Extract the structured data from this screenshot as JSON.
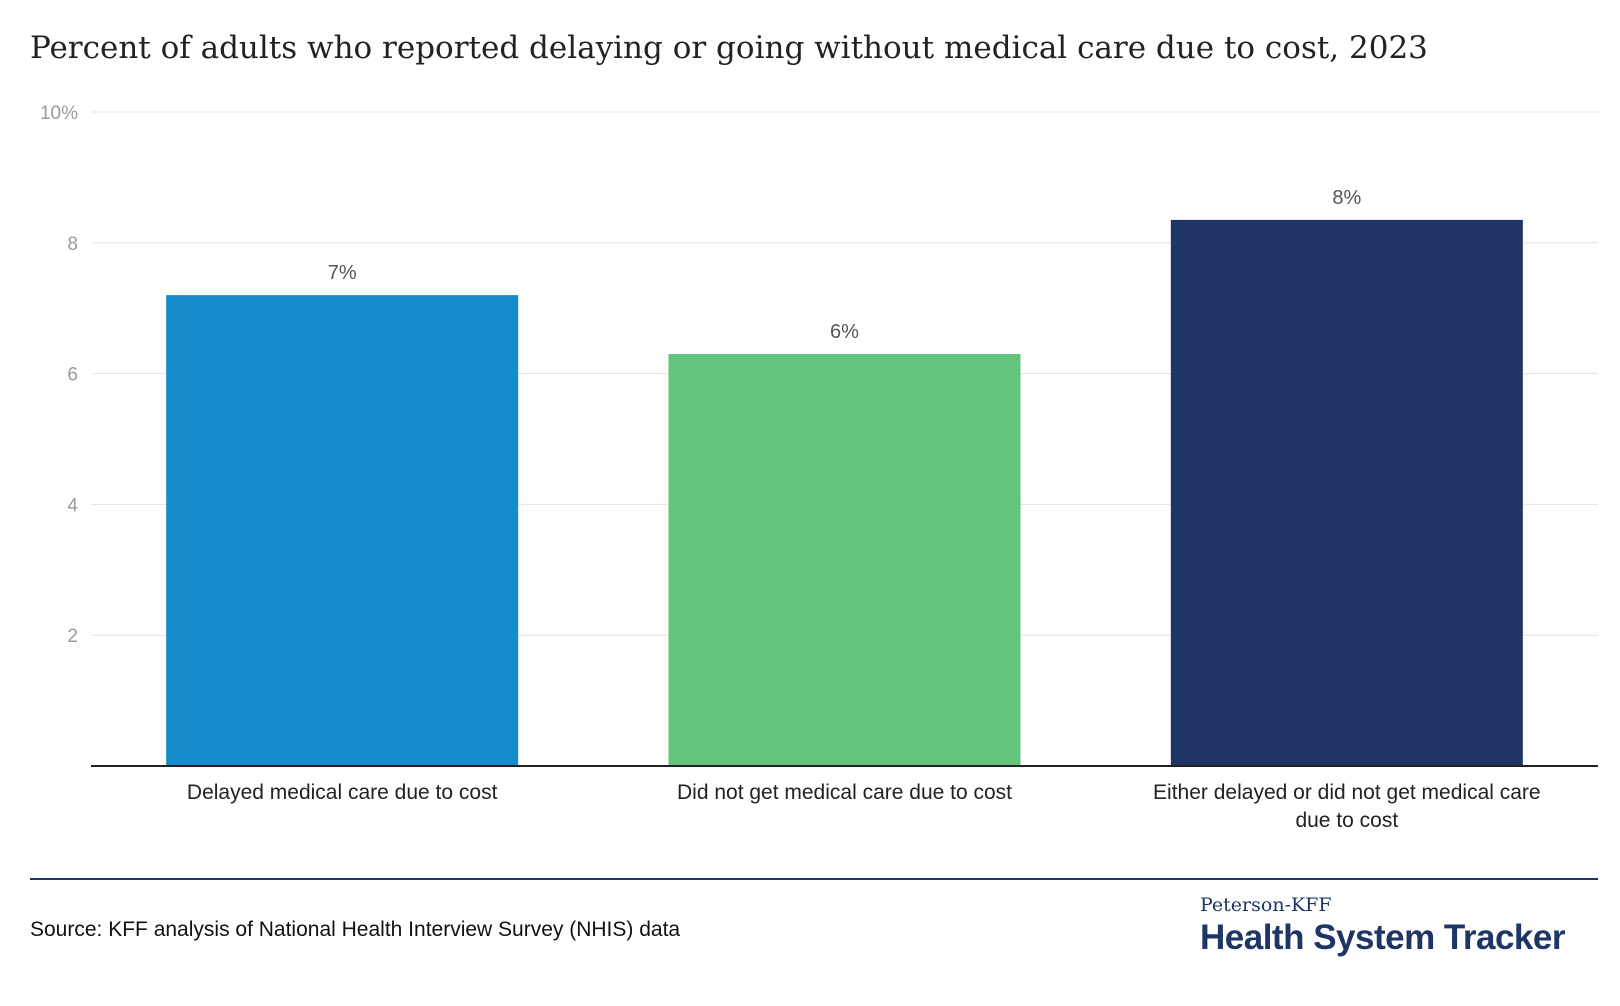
{
  "title": "Percent of adults who reported delaying or going without medical care due to cost, 2023",
  "chart_data": {
    "type": "bar",
    "title": "Percent of adults who reported delaying or going without medical care due to cost, 2023",
    "categories": [
      "Delayed medical care due to cost",
      "Did not get medical care due to cost",
      "Either delayed or did not get medical care due to cost"
    ],
    "values": [
      7.2,
      6.3,
      8.35
    ],
    "data_labels": [
      "7%",
      "6%",
      "8%"
    ],
    "bar_colors": [
      "#178bcb",
      "#63c57c",
      "#1f3566"
    ],
    "y_ticks": [
      {
        "value": 2,
        "label": "2"
      },
      {
        "value": 4,
        "label": "4"
      },
      {
        "value": 6,
        "label": "6"
      },
      {
        "value": 8,
        "label": "8"
      },
      {
        "value": 10,
        "label": "10%"
      }
    ],
    "ylim": [
      0,
      10
    ],
    "xlabel": "",
    "ylabel": "",
    "grid": true,
    "legend": "none"
  },
  "footer": {
    "source": "Source: KFF analysis of National Health Interview Survey (NHIS) data",
    "brand_top": "Peterson-KFF",
    "brand_main": "Health System Tracker",
    "accent_color": "#1f3566"
  }
}
